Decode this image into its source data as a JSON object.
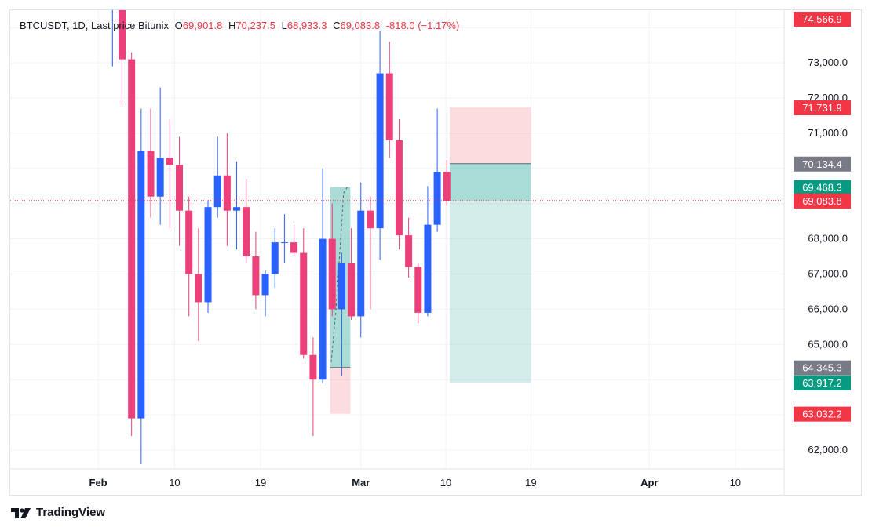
{
  "header": {
    "symbol": "BTCUSDT, 1D, Last price Bitunix",
    "open_label": "O",
    "open": "69,901.8",
    "high_label": "H",
    "high": "70,237.5",
    "low_label": "L",
    "low": "68,933.3",
    "close_label": "C",
    "close": "69,083.8",
    "change": "-818.0 (−1.17%)"
  },
  "branding": {
    "name": "TradingView",
    "logo_icon": "tradingview-logo-icon"
  },
  "colors": {
    "up": "#2962ff",
    "down": "#f23645",
    "grid": "#f0f3fa",
    "profit_fill": "#26a69a",
    "loss_fill": "#f7525f",
    "label_red": "#f23645",
    "label_gray": "#787b86",
    "label_green": "#089981"
  },
  "chart_data": {
    "type": "candlestick",
    "x_tick_labels": [
      "Feb",
      "10",
      "19",
      "Mar",
      "10",
      "19",
      "Apr",
      "10"
    ],
    "y_tick_labels": [
      "73,000.0",
      "72,000.0",
      "71,000.0",
      "68,000.0",
      "67,000.0",
      "66,000.0",
      "65,000.0",
      "62,000.0"
    ],
    "y_tick_values": [
      73000,
      72000,
      71000,
      68000,
      67000,
      66000,
      65000,
      62000
    ],
    "ylim": [
      61500,
      74900
    ],
    "candles": [
      {
        "i": -1,
        "o": 74566.9,
        "h": 74566.9,
        "l": 72900,
        "c": 74566.9
      },
      {
        "i": 0,
        "o": 74566.9,
        "h": 74900,
        "l": 71800,
        "c": 73100
      },
      {
        "i": 1,
        "o": 73100,
        "h": 73300,
        "l": 62400,
        "c": 62900
      },
      {
        "i": 2,
        "o": 62900,
        "h": 71700,
        "l": 61600,
        "c": 70500
      },
      {
        "i": 3,
        "o": 70500,
        "h": 71700,
        "l": 68600,
        "c": 69200
      },
      {
        "i": 4,
        "o": 69200,
        "h": 72300,
        "l": 68400,
        "c": 70300
      },
      {
        "i": 5,
        "o": 70300,
        "h": 71400,
        "l": 68300,
        "c": 70100
      },
      {
        "i": 6,
        "o": 70100,
        "h": 70900,
        "l": 67800,
        "c": 68800
      },
      {
        "i": 7,
        "o": 68800,
        "h": 69200,
        "l": 65800,
        "c": 67000
      },
      {
        "i": 8,
        "o": 67000,
        "h": 68300,
        "l": 65100,
        "c": 66200
      },
      {
        "i": 9,
        "o": 66200,
        "h": 69100,
        "l": 65900,
        "c": 68900
      },
      {
        "i": 10,
        "o": 68900,
        "h": 70900,
        "l": 68600,
        "c": 69800
      },
      {
        "i": 11,
        "o": 69800,
        "h": 71000,
        "l": 67800,
        "c": 68800
      },
      {
        "i": 12,
        "o": 68800,
        "h": 70200,
        "l": 67700,
        "c": 68900
      },
      {
        "i": 13,
        "o": 68900,
        "h": 69700,
        "l": 67300,
        "c": 67500
      },
      {
        "i": 14,
        "o": 67500,
        "h": 68200,
        "l": 66000,
        "c": 66400
      },
      {
        "i": 15,
        "o": 66400,
        "h": 67100,
        "l": 65800,
        "c": 67000
      },
      {
        "i": 16,
        "o": 67000,
        "h": 68300,
        "l": 66600,
        "c": 67900
      },
      {
        "i": 17,
        "o": 67900,
        "h": 68700,
        "l": 67300,
        "c": 67900
      },
      {
        "i": 18,
        "o": 67900,
        "h": 68400,
        "l": 67500,
        "c": 67600
      },
      {
        "i": 19,
        "o": 67600,
        "h": 68300,
        "l": 64600,
        "c": 64700
      },
      {
        "i": 20,
        "o": 64700,
        "h": 65200,
        "l": 62400,
        "c": 64000
      },
      {
        "i": 21,
        "o": 64000,
        "h": 70000,
        "l": 63900,
        "c": 68000
      },
      {
        "i": 22,
        "o": 68000,
        "h": 69000,
        "l": 65800,
        "c": 66000
      },
      {
        "i": 23,
        "o": 66000,
        "h": 67600,
        "l": 64100,
        "c": 67300
      },
      {
        "i": 24,
        "o": 67300,
        "h": 68300,
        "l": 65700,
        "c": 65800
      },
      {
        "i": 25,
        "o": 65800,
        "h": 69600,
        "l": 65200,
        "c": 68800
      },
      {
        "i": 26,
        "o": 68800,
        "h": 69200,
        "l": 66000,
        "c": 68300
      },
      {
        "i": 27,
        "o": 68300,
        "h": 73900,
        "l": 67400,
        "c": 72700
      },
      {
        "i": 28,
        "o": 72700,
        "h": 73600,
        "l": 70300,
        "c": 70800
      },
      {
        "i": 29,
        "o": 70800,
        "h": 71400,
        "l": 67700,
        "c": 68100
      },
      {
        "i": 30,
        "o": 68100,
        "h": 68600,
        "l": 66900,
        "c": 67200
      },
      {
        "i": 31,
        "o": 67200,
        "h": 67300,
        "l": 65600,
        "c": 65900
      },
      {
        "i": 32,
        "o": 65900,
        "h": 69500,
        "l": 65800,
        "c": 68400
      },
      {
        "i": 33,
        "o": 68400,
        "h": 71700,
        "l": 68200,
        "c": 69900
      },
      {
        "i": 34,
        "o": 69901.8,
        "h": 70237.5,
        "l": 68933.3,
        "c": 69083.8
      }
    ],
    "positions": [
      {
        "type": "long",
        "entry": 64345.3,
        "target": 69468.3,
        "stop": 63032.2,
        "i_start": 21.8,
        "i_end": 23.9
      },
      {
        "type": "short",
        "entry": 70134.4,
        "target": 63917.2,
        "stop": 71731.9,
        "i_start": 34.3,
        "i_end": 42.8
      }
    ],
    "price_labels": [
      {
        "text": "74,566.9",
        "value": 74566.9,
        "kind": "red"
      },
      {
        "text": "71,731.9",
        "value": 71731.9,
        "kind": "red"
      },
      {
        "text": "70,134.4",
        "value": 70134.4,
        "kind": "gray"
      },
      {
        "text": "69,468.3",
        "value": 69468.3,
        "kind": "green"
      },
      {
        "text": "69,083.8",
        "value": 69083.8,
        "kind": "red"
      },
      {
        "text": "64,345.3",
        "value": 64345.3,
        "kind": "gray"
      },
      {
        "text": "63,917.2",
        "value": 63917.2,
        "kind": "green"
      },
      {
        "text": "63,032.2",
        "value": 63032.2,
        "kind": "red"
      }
    ],
    "last_price": 69083.8
  }
}
